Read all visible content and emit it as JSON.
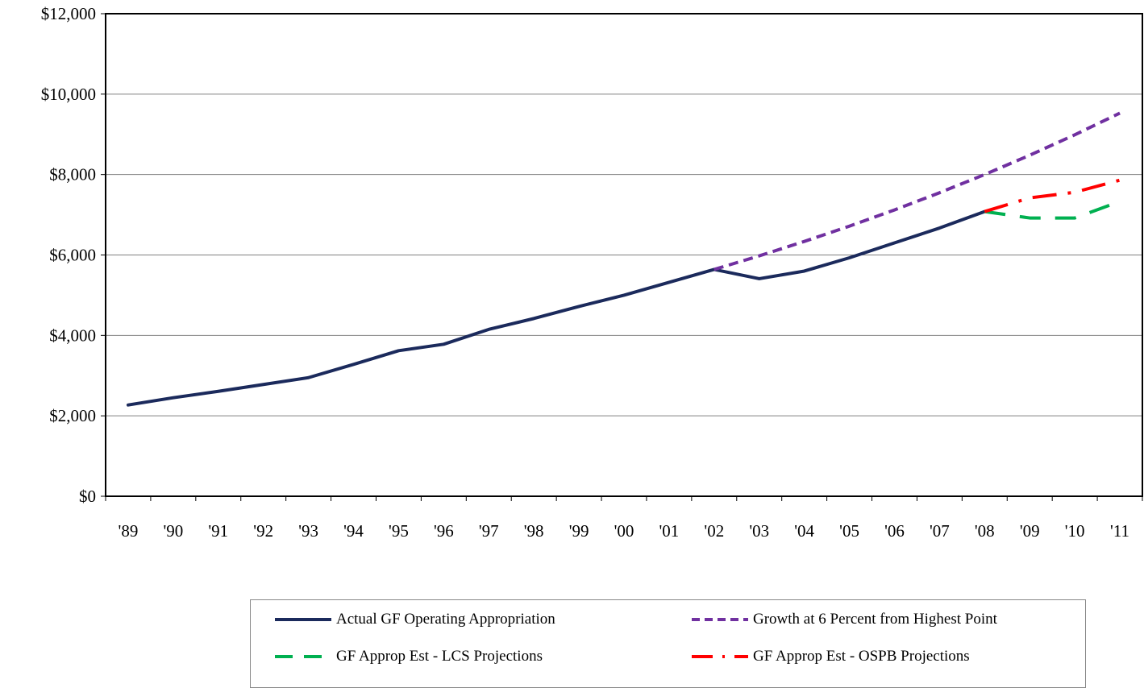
{
  "chart_data": {
    "type": "line",
    "categories": [
      "'89",
      "'90",
      "'91",
      "'92",
      "'93",
      "'94",
      "'95",
      "'96",
      "'97",
      "'98",
      "'99",
      "'00",
      "'01",
      "'02",
      "'03",
      "'04",
      "'05",
      "'06",
      "'07",
      "'08",
      "'09",
      "'10",
      "'11"
    ],
    "ylim": [
      0,
      12000
    ],
    "yticks": [
      0,
      2000,
      4000,
      6000,
      8000,
      10000,
      12000
    ],
    "ytick_labels": [
      "$0",
      "$2,000",
      "$4,000",
      "$6,000",
      "$8,000",
      "$10,000",
      "$12,000"
    ],
    "grid": true,
    "legend_position": "bottom",
    "series": [
      {
        "name": "Actual GF Operating Appropriation",
        "color": "#1b2a5c",
        "style": "solid",
        "x": [
          "'89",
          "'90",
          "'91",
          "'92",
          "'93",
          "'94",
          "'95",
          "'96",
          "'97",
          "'98",
          "'99",
          "'00",
          "'01",
          "'02",
          "'03",
          "'04",
          "'05",
          "'06",
          "'07",
          "'08"
        ],
        "values": [
          2270,
          2450,
          2610,
          2780,
          2950,
          3280,
          3620,
          3780,
          4150,
          4420,
          4720,
          5000,
          5320,
          5640,
          5410,
          5600,
          5930,
          6300,
          6670,
          7080
        ]
      },
      {
        "name": "Growth at 6 Percent from Highest Point",
        "color": "#7030a0",
        "style": "dash",
        "x": [
          "'02",
          "'03",
          "'04",
          "'05",
          "'06",
          "'07",
          "'08",
          "'09",
          "'10",
          "'11"
        ],
        "values": [
          5640,
          5978,
          6337,
          6717,
          7120,
          7548,
          8000,
          8480,
          8989,
          9528
        ]
      },
      {
        "name": "GF Approp Est - LCS Projections",
        "color": "#00b050",
        "style": "long-dash",
        "x": [
          "'08",
          "'09",
          "'10",
          "'11"
        ],
        "values": [
          7080,
          6920,
          6920,
          7330
        ]
      },
      {
        "name": "GF Approp Est - OSPB Projections",
        "color": "#ff0000",
        "style": "dash-dot",
        "x": [
          "'08",
          "'09",
          "'10",
          "'11"
        ],
        "values": [
          7080,
          7420,
          7560,
          7860
        ]
      }
    ]
  },
  "legend": {
    "items": [
      {
        "label": "Actual GF Operating Appropriation"
      },
      {
        "label": "Growth at 6 Percent from Highest Point"
      },
      {
        "label": "GF Approp Est - LCS Projections"
      },
      {
        "label": "GF Approp Est - OSPB Projections"
      }
    ]
  }
}
